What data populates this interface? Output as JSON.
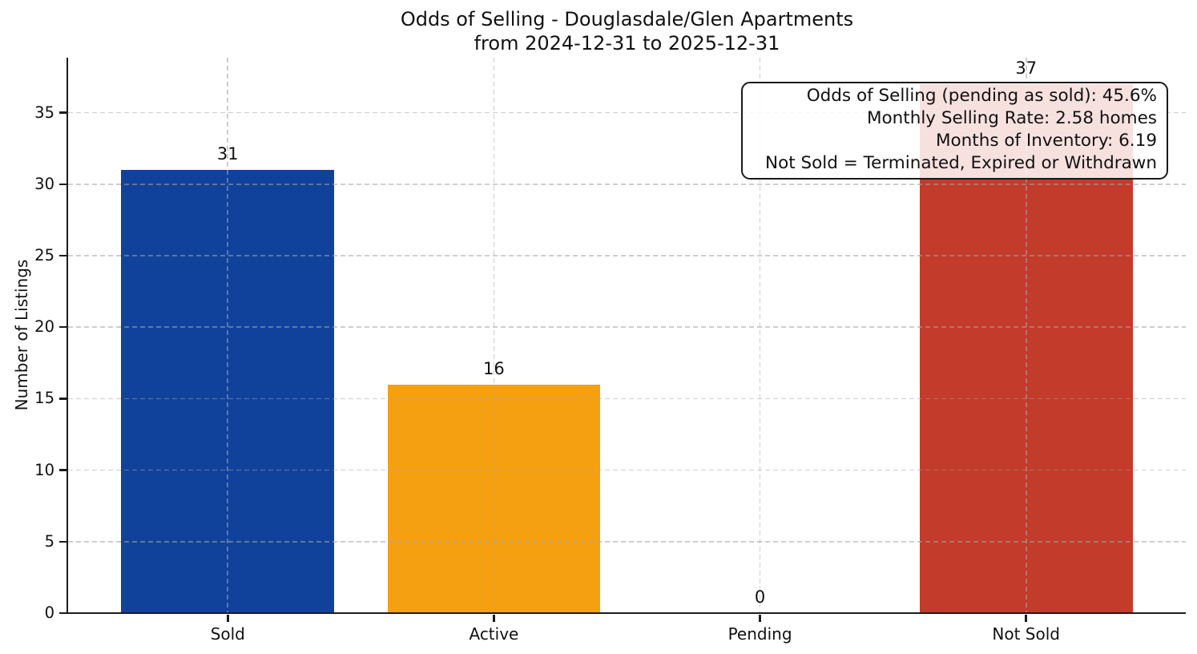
{
  "title": {
    "line1": "Odds of Selling - Douglasdale/Glen Apartments",
    "line2": "from 2024-12-31 to 2025-12-31"
  },
  "ylabel": "Number of Listings",
  "annotation_box": {
    "lines": [
      "Odds of Selling (pending as sold): 45.6%",
      "Monthly Selling Rate: 2.58 homes",
      "Months of Inventory: 6.19",
      "Not Sold = Terminated, Expired or Withdrawn"
    ]
  },
  "chart_data": {
    "type": "bar",
    "title": "Odds of Selling - Douglasdale/Glen Apartments",
    "subtitle": "from 2024-12-31 to 2025-12-31",
    "xlabel": "",
    "ylabel": "Number of Listings",
    "categories": [
      "Sold",
      "Active",
      "Pending",
      "Not Sold"
    ],
    "values": [
      31,
      16,
      0,
      37
    ],
    "value_labels": [
      "31",
      "16",
      "0",
      "37"
    ],
    "bar_colors": [
      "#11429b",
      "#f5a011",
      null,
      "#c23b2b"
    ],
    "yticks": [
      0,
      5,
      10,
      15,
      20,
      25,
      30,
      35
    ],
    "ylim": [
      0,
      38.85
    ],
    "grid": {
      "style": "dashed",
      "horizontal": true,
      "vertical": true,
      "drawn_over_bars": true
    },
    "legend": false,
    "annotations": [
      "Odds of Selling (pending as sold): 45.6%",
      "Monthly Selling Rate: 2.58 homes",
      "Months of Inventory: 6.19",
      "Not Sold = Terminated, Expired or Withdrawn"
    ]
  },
  "colors": {
    "sold_bar": "#11429b",
    "active_bar": "#f5a011",
    "not_sold_bar": "#c23b2b",
    "axis": "#1c1c1c",
    "grid": "#d9d9d9",
    "annotation_border": "#1a1a1a",
    "annotation_bg": "rgba(255,255,255,0.85)"
  }
}
